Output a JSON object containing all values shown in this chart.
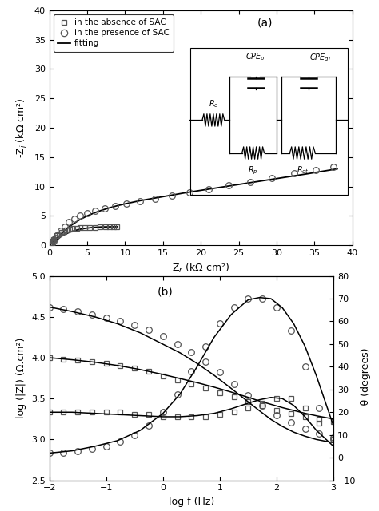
{
  "panel_a": {
    "title": "(a)",
    "xlabel": "Z$_r$ (kΩ cm²)",
    "ylabel": "-Z$_j$ (kΩ cm²)",
    "xlim": [
      0,
      40
    ],
    "ylim": [
      0,
      40
    ],
    "xticks": [
      0,
      5,
      10,
      15,
      20,
      25,
      30,
      35,
      40
    ],
    "yticks": [
      0,
      5,
      10,
      15,
      20,
      25,
      30,
      35,
      40
    ],
    "absence_data": {
      "zr": [
        0.05,
        0.1,
        0.15,
        0.25,
        0.4,
        0.6,
        0.8,
        1.0,
        1.3,
        1.6,
        1.9,
        2.3,
        2.7,
        3.1,
        3.6,
        4.1,
        4.7,
        5.3,
        6.0,
        6.7,
        7.4,
        8.0,
        8.5,
        8.9
      ],
      "zj": [
        0.02,
        0.08,
        0.18,
        0.4,
        0.7,
        1.0,
        1.3,
        1.6,
        1.9,
        2.2,
        2.4,
        2.6,
        2.75,
        2.85,
        2.92,
        2.98,
        3.02,
        3.05,
        3.08,
        3.1,
        3.12,
        3.13,
        3.14,
        3.15
      ]
    },
    "presence_data": {
      "zr": [
        0.05,
        0.1,
        0.2,
        0.35,
        0.55,
        0.8,
        1.1,
        1.5,
        2.0,
        2.6,
        3.3,
        4.1,
        5.0,
        6.1,
        7.3,
        8.7,
        10.2,
        12.0,
        14.0,
        16.2,
        18.5,
        21.0,
        23.7,
        26.5,
        29.4,
        32.3,
        35.2,
        37.5
      ],
      "zj": [
        0.02,
        0.06,
        0.15,
        0.35,
        0.7,
        1.2,
        1.8,
        2.5,
        3.2,
        3.9,
        4.5,
        5.0,
        5.5,
        5.9,
        6.3,
        6.7,
        7.1,
        7.5,
        7.9,
        8.4,
        9.0,
        9.5,
        10.2,
        10.8,
        11.4,
        12.2,
        12.8,
        13.3
      ]
    },
    "fit_absence": {
      "zr": [
        0.0,
        0.3,
        0.6,
        0.9,
        1.2,
        1.5,
        2.0,
        2.5,
        3.0,
        3.5,
        4.0,
        4.5,
        5.0,
        5.5,
        6.0,
        6.5,
        7.0,
        7.5,
        8.0,
        8.5,
        9.0
      ],
      "zj": [
        0.0,
        0.28,
        0.55,
        0.85,
        1.15,
        1.45,
        1.82,
        2.12,
        2.36,
        2.56,
        2.72,
        2.84,
        2.93,
        3.0,
        3.06,
        3.1,
        3.13,
        3.14,
        3.15,
        3.155,
        3.16
      ]
    },
    "fit_presence": {
      "zr": [
        0.0,
        0.5,
        1.0,
        2.0,
        3.0,
        4.0,
        5.0,
        6.0,
        7.0,
        8.0,
        9.0,
        10.0,
        12.0,
        14.0,
        16.0,
        18.0,
        20.0,
        22.0,
        24.0,
        26.0,
        28.0,
        30.0,
        32.0,
        34.0,
        36.0,
        38.0
      ],
      "zj": [
        0.0,
        0.6,
        1.2,
        2.5,
        3.5,
        4.35,
        5.0,
        5.55,
        6.0,
        6.4,
        6.75,
        7.05,
        7.6,
        8.05,
        8.5,
        8.95,
        9.35,
        9.75,
        10.15,
        10.55,
        10.95,
        11.35,
        11.75,
        12.15,
        12.58,
        13.0
      ]
    }
  },
  "panel_b": {
    "title": "(b)",
    "xlabel": "log f (Hz)",
    "ylabel_left": "log (|Z|) (Ω.cm²)",
    "ylabel_right": "-θ (degrees)",
    "xlim": [
      -2,
      3
    ],
    "ylim_left": [
      2.5,
      5.0
    ],
    "ylim_right": [
      -10,
      80
    ],
    "xticks": [
      -2,
      -1,
      0,
      1,
      2,
      3
    ],
    "yticks_left": [
      2.5,
      3.0,
      3.5,
      4.0,
      4.5,
      5.0
    ],
    "yticks_right": [
      -10,
      0,
      10,
      20,
      30,
      40,
      50,
      60,
      70,
      80
    ],
    "logf": [
      -2.0,
      -1.75,
      -1.5,
      -1.25,
      -1.0,
      -0.75,
      -0.5,
      -0.25,
      0.0,
      0.25,
      0.5,
      0.75,
      1.0,
      1.25,
      1.5,
      1.75,
      2.0,
      2.25,
      2.5,
      2.75,
      3.0
    ],
    "logZ_absence": [
      4.0,
      3.985,
      3.97,
      3.95,
      3.93,
      3.9,
      3.87,
      3.83,
      3.78,
      3.73,
      3.68,
      3.63,
      3.57,
      3.52,
      3.46,
      3.41,
      3.36,
      3.32,
      3.28,
      3.25,
      3.22
    ],
    "logZ_presence": [
      4.62,
      4.595,
      4.565,
      4.53,
      4.49,
      4.45,
      4.4,
      4.34,
      4.26,
      4.17,
      4.07,
      3.95,
      3.82,
      3.68,
      3.54,
      3.41,
      3.3,
      3.21,
      3.13,
      3.07,
      3.02
    ],
    "theta_absence": [
      20,
      20,
      20,
      20,
      20,
      20,
      19,
      19,
      18,
      18,
      18,
      18,
      19,
      20,
      22,
      24,
      26,
      26,
      22,
      15,
      8
    ],
    "theta_presence": [
      2,
      2,
      3,
      4,
      5,
      7,
      10,
      14,
      20,
      28,
      38,
      49,
      59,
      66,
      70,
      70,
      66,
      56,
      40,
      22,
      8
    ],
    "logf_fit": [
      -2.0,
      -1.6,
      -1.2,
      -0.8,
      -0.4,
      0.0,
      0.3,
      0.6,
      0.9,
      1.2,
      1.5,
      1.7,
      1.9,
      2.1,
      2.3,
      2.5,
      2.7,
      3.0
    ],
    "logZ_absence_fit": [
      4.0,
      3.975,
      3.945,
      3.905,
      3.855,
      3.795,
      3.745,
      3.695,
      3.64,
      3.58,
      3.515,
      3.47,
      3.43,
      3.39,
      3.355,
      3.32,
      3.29,
      3.25
    ],
    "logZ_presence_fit": [
      4.62,
      4.565,
      4.5,
      4.415,
      4.305,
      4.165,
      4.06,
      3.93,
      3.785,
      3.625,
      3.46,
      3.35,
      3.245,
      3.16,
      3.09,
      3.04,
      3.0,
      2.96
    ],
    "theta_absence_fit": [
      20,
      20,
      19.5,
      19,
      18.5,
      18,
      18,
      18.5,
      19.5,
      21.5,
      24,
      25.5,
      26.5,
      26,
      23,
      18,
      12,
      5
    ],
    "theta_presence_fit": [
      2,
      3,
      5,
      7.5,
      12,
      19.5,
      28,
      40,
      53,
      63,
      69.5,
      70.5,
      70,
      66,
      59,
      49,
      36,
      14
    ]
  },
  "legend": {
    "absence_label": "in the absence of SAC",
    "presence_label": "in the presence of SAC",
    "fit_label": "fitting"
  },
  "colors": {
    "data": "#000000",
    "fit": "#000000"
  },
  "circuit": {
    "Re_label": "$R_e$",
    "Rp_label": "$R_p$",
    "Rct_label": "$R_{ct}$",
    "CPEp_label": "$CPE_p$",
    "CPEdl_label": "$CPE_{dl}$"
  }
}
